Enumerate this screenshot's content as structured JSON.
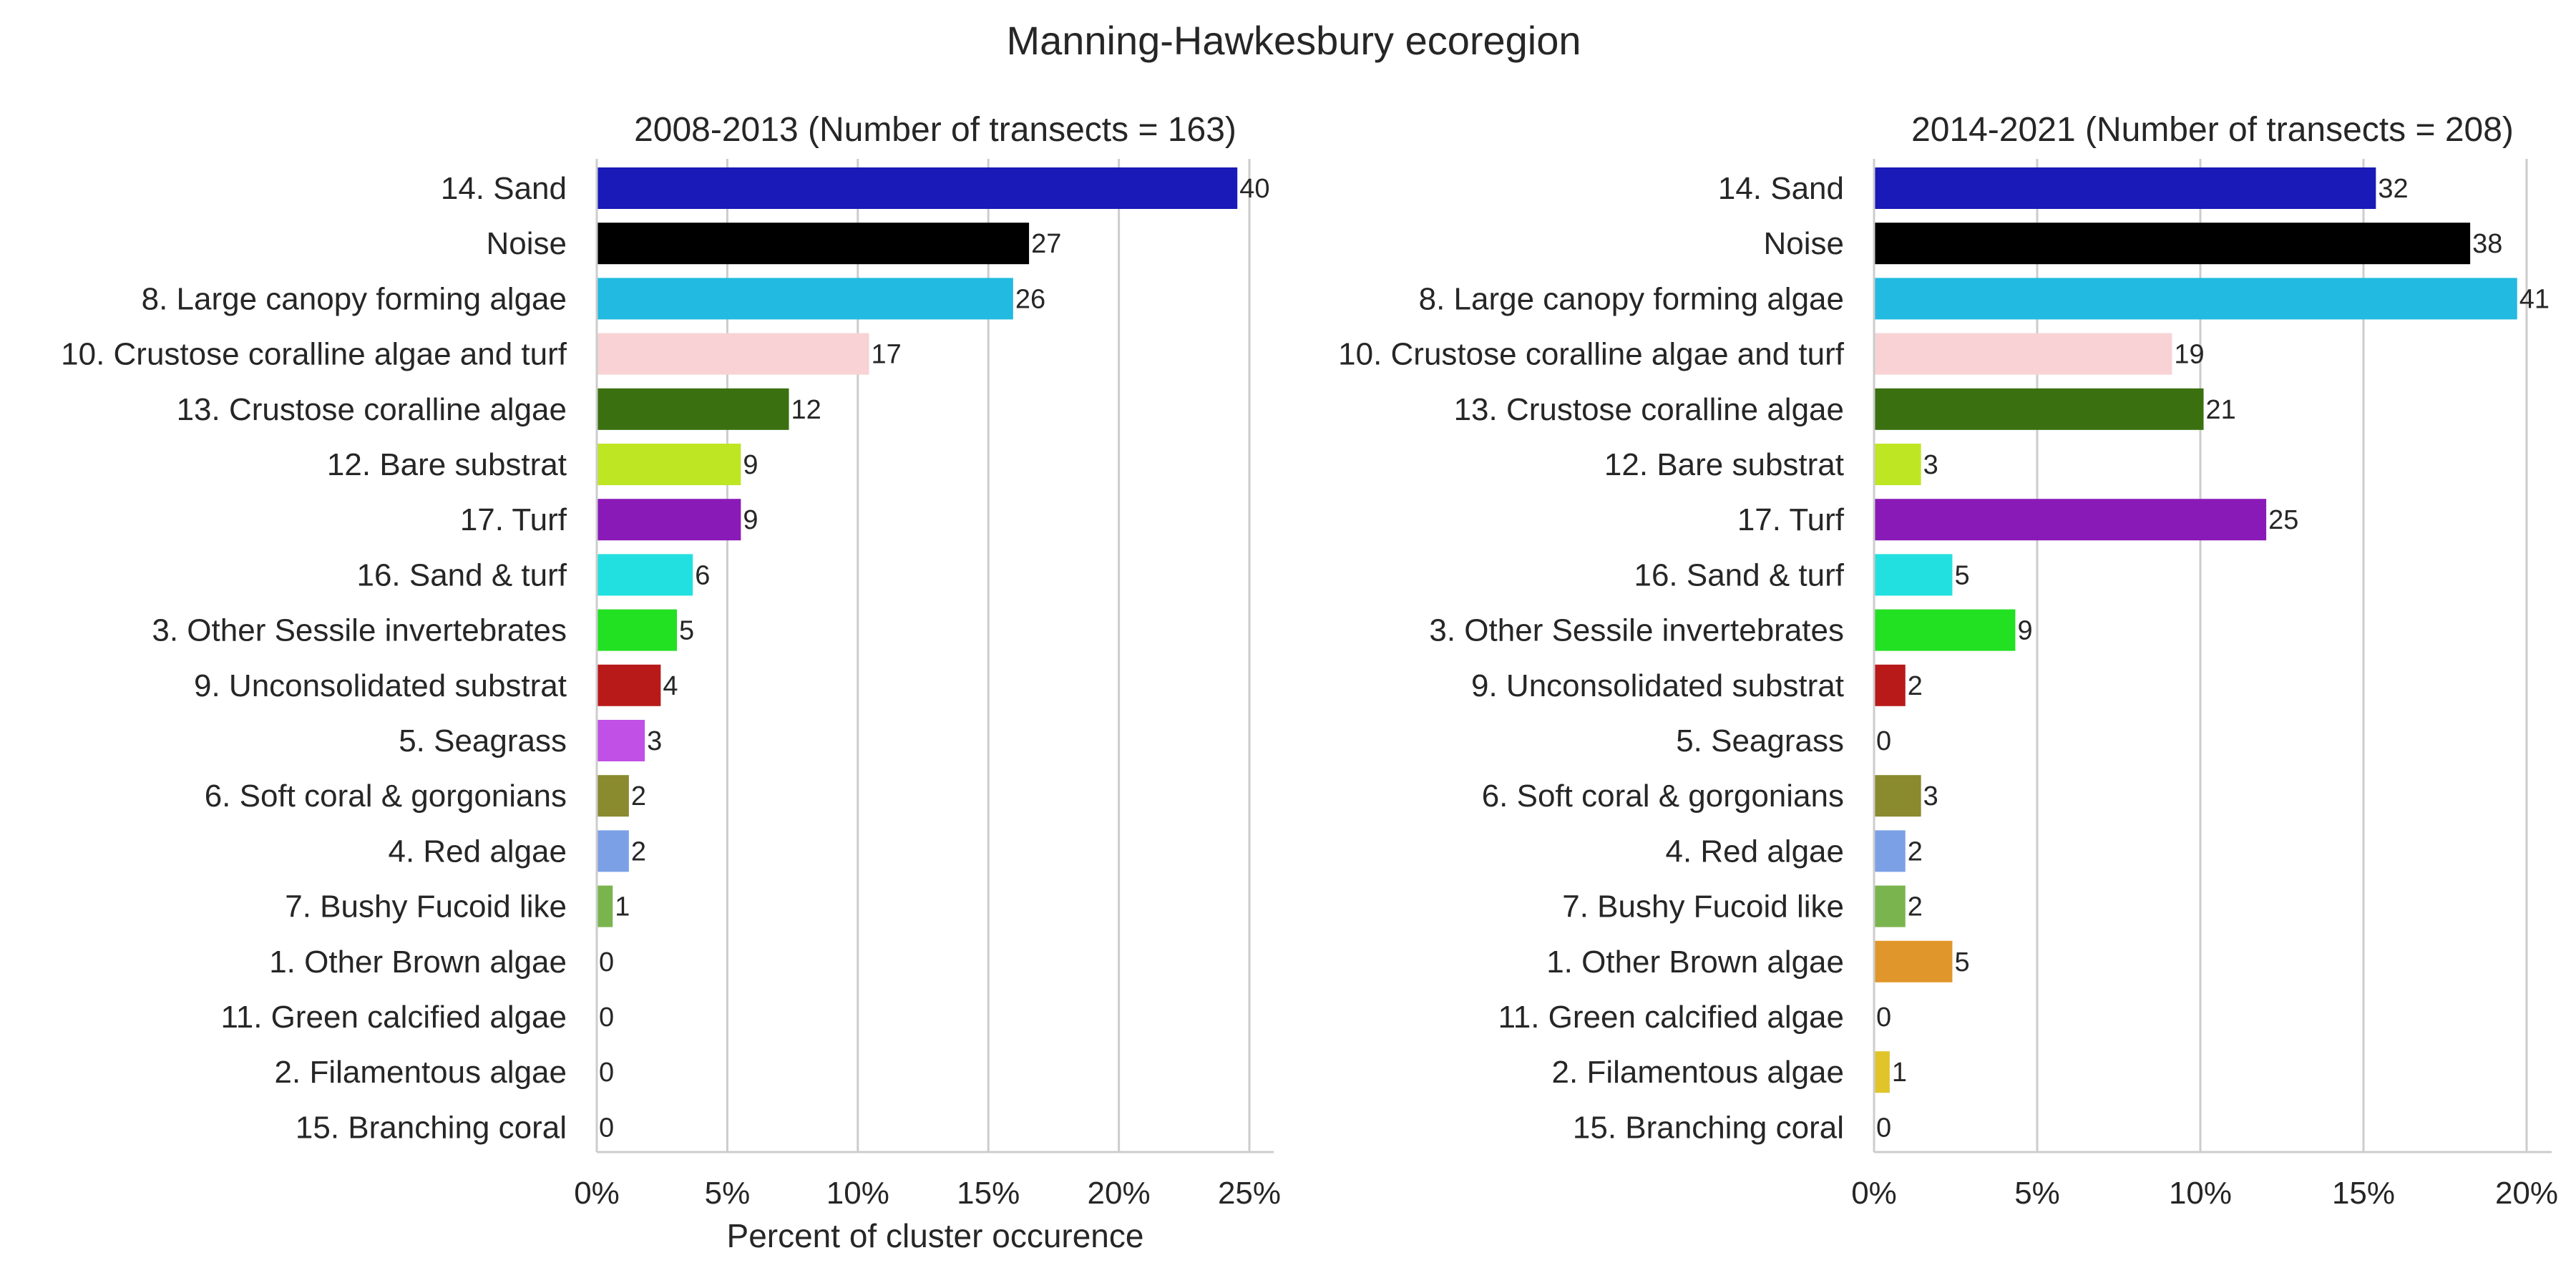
{
  "figure": {
    "title": "Manning-Hawkesbury ecoregion"
  },
  "chart_data": [
    {
      "type": "bar",
      "orientation": "horizontal",
      "title": "2008-2013 (Number of transects = 163)",
      "xlabel": "Percent of cluster occurence",
      "ylabel": "",
      "xlim": [
        0,
        0.25
      ],
      "xticks": [
        0,
        0.05,
        0.1,
        0.15,
        0.2,
        0.25
      ],
      "xtick_labels": [
        "0%",
        "5%",
        "10%",
        "15%",
        "20%",
        "25%"
      ],
      "grid": "vertical",
      "categories": [
        "14. Sand",
        "Noise",
        "8. Large canopy forming algae",
        "10. Crustose coralline algae and turf",
        "13. Crustose coralline algae",
        "12. Bare substrat",
        "17. Turf",
        "16. Sand & turf",
        "3. Other Sessile invertebrates",
        "9. Unconsolidated substrat",
        "5. Seagrass",
        "6. Soft coral & gorgonians",
        "4. Red algae",
        "7. Bushy Fucoid like",
        "1. Other Brown algae",
        "11. Green calcified algae",
        "2. Filamentous algae",
        "15. Branching coral"
      ],
      "counts": [
        40,
        27,
        26,
        17,
        12,
        9,
        9,
        6,
        5,
        4,
        3,
        2,
        2,
        1,
        0,
        0,
        0,
        0
      ],
      "data_labels": [
        "40",
        "27",
        "26",
        "17",
        "12",
        "9",
        "9",
        "6",
        "5",
        "4",
        "3",
        "2",
        "2",
        "1",
        "0",
        "0",
        "0",
        "0"
      ],
      "values": [
        0.2454,
        0.1656,
        0.1595,
        0.1043,
        0.0736,
        0.0552,
        0.0552,
        0.0368,
        0.0307,
        0.0245,
        0.0184,
        0.0123,
        0.0123,
        0.0061,
        0,
        0,
        0,
        0
      ],
      "colors": [
        "#1a1ab8",
        "#000000",
        "#22bae0",
        "#f8d2d4",
        "#3a7010",
        "#bee622",
        "#8a1ab8",
        "#22e0e0",
        "#22e022",
        "#b81a1a",
        "#c050e6",
        "#8a8a2e",
        "#7ba0e6",
        "#7ab44e",
        "#e0962a",
        "#c0c0c0",
        "#e0c42a",
        "#a0a0a0"
      ]
    },
    {
      "type": "bar",
      "orientation": "horizontal",
      "title": "2014-2021 (Number of transects = 208)",
      "xlabel": "",
      "ylabel": "",
      "xlim": [
        0,
        0.2
      ],
      "xticks": [
        0,
        0.05,
        0.1,
        0.15,
        0.2
      ],
      "xtick_labels": [
        "0%",
        "5%",
        "10%",
        "15%",
        "20%"
      ],
      "grid": "vertical",
      "categories": [
        "14. Sand",
        "Noise",
        "8. Large canopy forming algae",
        "10. Crustose coralline algae and turf",
        "13. Crustose coralline algae",
        "12. Bare substrat",
        "17. Turf",
        "16. Sand & turf",
        "3. Other Sessile invertebrates",
        "9. Unconsolidated substrat",
        "5. Seagrass",
        "6. Soft coral & gorgonians",
        "4. Red algae",
        "7. Bushy Fucoid like",
        "1. Other Brown algae",
        "11. Green calcified algae",
        "2. Filamentous algae",
        "15. Branching coral"
      ],
      "counts": [
        32,
        38,
        41,
        19,
        21,
        3,
        25,
        5,
        9,
        2,
        0,
        3,
        2,
        2,
        5,
        0,
        1,
        0
      ],
      "data_labels": [
        "32",
        "38",
        "41",
        "19",
        "21",
        "3",
        "25",
        "5",
        "9",
        "2",
        "0",
        "3",
        "2",
        "2",
        "5",
        "0",
        "1",
        "0"
      ],
      "values": [
        0.1538,
        0.1827,
        0.1971,
        0.0913,
        0.101,
        0.0144,
        0.1202,
        0.024,
        0.0433,
        0.0096,
        0,
        0.0144,
        0.0096,
        0.0096,
        0.024,
        0,
        0.0048,
        0
      ],
      "colors": [
        "#1a1ab8",
        "#000000",
        "#22bae0",
        "#f8d2d4",
        "#3a7010",
        "#bee622",
        "#8a1ab8",
        "#22e0e0",
        "#22e022",
        "#b81a1a",
        "#c050e6",
        "#8a8a2e",
        "#7ba0e6",
        "#7ab44e",
        "#e0962a",
        "#c0c0c0",
        "#e0c42a",
        "#a0a0a0"
      ]
    }
  ]
}
